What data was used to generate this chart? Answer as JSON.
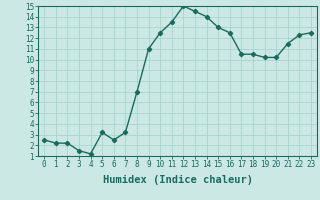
{
  "xlabel": "Humidex (Indice chaleur)",
  "x": [
    0,
    1,
    2,
    3,
    4,
    5,
    6,
    7,
    8,
    9,
    10,
    11,
    12,
    13,
    14,
    15,
    16,
    17,
    18,
    19,
    20,
    21,
    22,
    23
  ],
  "y": [
    2.5,
    2.2,
    2.2,
    1.5,
    1.2,
    3.2,
    2.5,
    3.2,
    7.0,
    11.0,
    12.5,
    13.5,
    15.0,
    14.5,
    14.0,
    13.0,
    12.5,
    10.5,
    10.5,
    10.2,
    10.2,
    11.5,
    12.3,
    12.5
  ],
  "line_color": "#1a6b5e",
  "marker": "D",
  "marker_size": 2.2,
  "line_width": 1.0,
  "background_color": "#cce8e4",
  "grid_color": "#a8d4ce",
  "xlim": [
    0,
    23
  ],
  "ylim": [
    1,
    15
  ],
  "yticks": [
    1,
    2,
    3,
    4,
    5,
    6,
    7,
    8,
    9,
    10,
    11,
    12,
    13,
    14,
    15
  ],
  "xticks": [
    0,
    1,
    2,
    3,
    4,
    5,
    6,
    7,
    8,
    9,
    10,
    11,
    12,
    13,
    14,
    15,
    16,
    17,
    18,
    19,
    20,
    21,
    22,
    23
  ],
  "tick_fontsize": 5.5,
  "xlabel_fontsize": 7.5
}
